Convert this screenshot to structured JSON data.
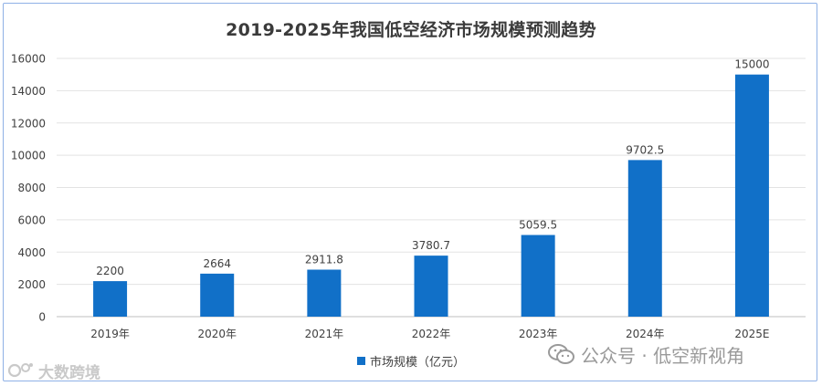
{
  "chart_data": {
    "type": "bar",
    "title": "2019-2025年我国低空经济市场规模预测趋势",
    "categories": [
      "2019年",
      "2020年",
      "2021年",
      "2022年",
      "2023年",
      "2024年",
      "2025E"
    ],
    "series": [
      {
        "name": "市场规模（亿元）",
        "values": [
          2200,
          2664,
          2911.8,
          3780.7,
          5059.5,
          9702.5,
          15000
        ],
        "labels": [
          "2200",
          "2664",
          "2911.8",
          "3780.7",
          "5059.5",
          "9702.5",
          "15000"
        ]
      }
    ],
    "yticks": [
      "0",
      "2000",
      "4000",
      "6000",
      "8000",
      "10000",
      "12000",
      "14000",
      "16000"
    ],
    "ylim": [
      0,
      16000
    ],
    "grid": true,
    "legend": "bottom",
    "bar_color": "#1170c8"
  },
  "watermarks": {
    "right": "公众号 · 低空新视角",
    "left": "大数跨境"
  }
}
